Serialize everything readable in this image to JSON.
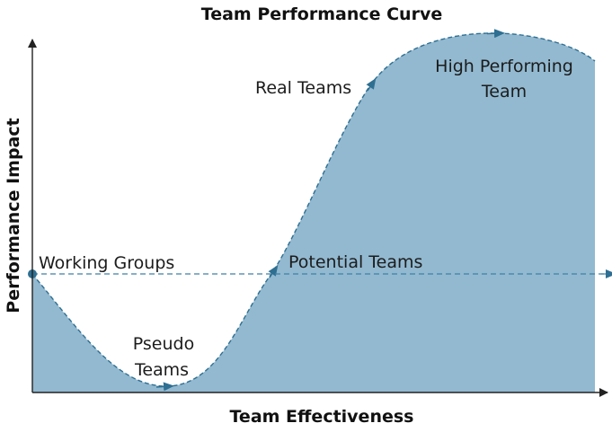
{
  "diagram": {
    "title": "Team Performance Curve",
    "x_axis_label": "Team Effectiveness",
    "y_axis_label": "Performance Impact",
    "stages": [
      {
        "label": "Working Groups"
      },
      {
        "label": "Pseudo"
      },
      {
        "label": "Teams"
      },
      {
        "label": "Potential Teams"
      },
      {
        "label": "Real Teams"
      },
      {
        "label": "High Performing"
      },
      {
        "label": "Team"
      }
    ],
    "colors": {
      "area_fill": "#92b9d0",
      "curve_stroke": "#2e6f92",
      "baseline_stroke": "#3f80a6",
      "axis_stroke": "#222222"
    }
  }
}
